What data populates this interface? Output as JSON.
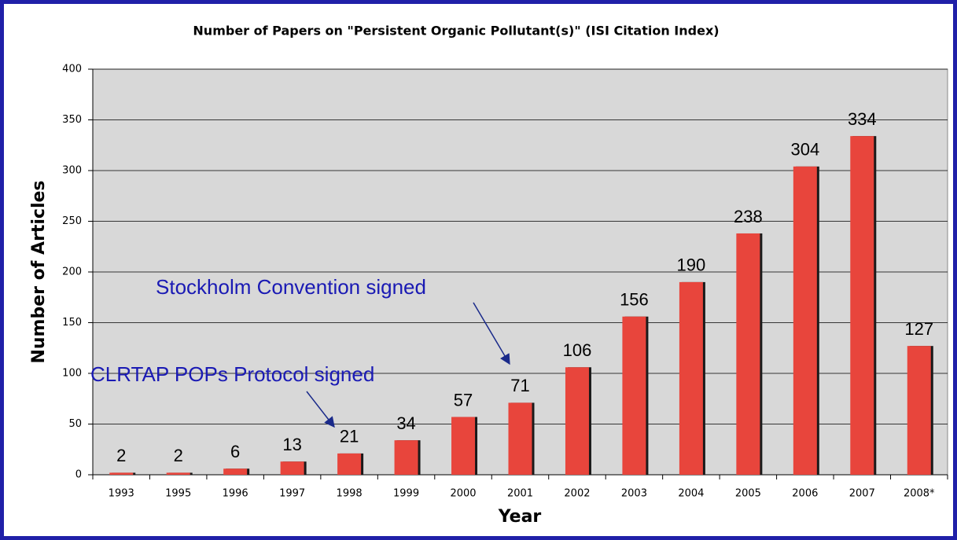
{
  "chart_data": {
    "type": "bar",
    "title": "Number of Papers on \"Persistent Organic Pollutant(s)\"  (ISI Citation Index)",
    "x_label": "Year",
    "y_label": "Number of Articles",
    "categories": [
      "1993",
      "1995",
      "1996",
      "1997",
      "1998",
      "1999",
      "2000",
      "2001",
      "2002",
      "2003",
      "2004",
      "2005",
      "2006",
      "2007",
      "2008*"
    ],
    "values": [
      2,
      2,
      6,
      13,
      21,
      34,
      57,
      71,
      106,
      156,
      190,
      238,
      304,
      334,
      127
    ],
    "color": "#e8453c",
    "ylim": [
      0,
      400
    ],
    "yticks": [
      0,
      50,
      100,
      150,
      200,
      250,
      300,
      350,
      400
    ],
    "grid": true,
    "annotations": [
      "Stockholm Convention signed",
      "CLRTAP POPs Protocol signed"
    ]
  }
}
